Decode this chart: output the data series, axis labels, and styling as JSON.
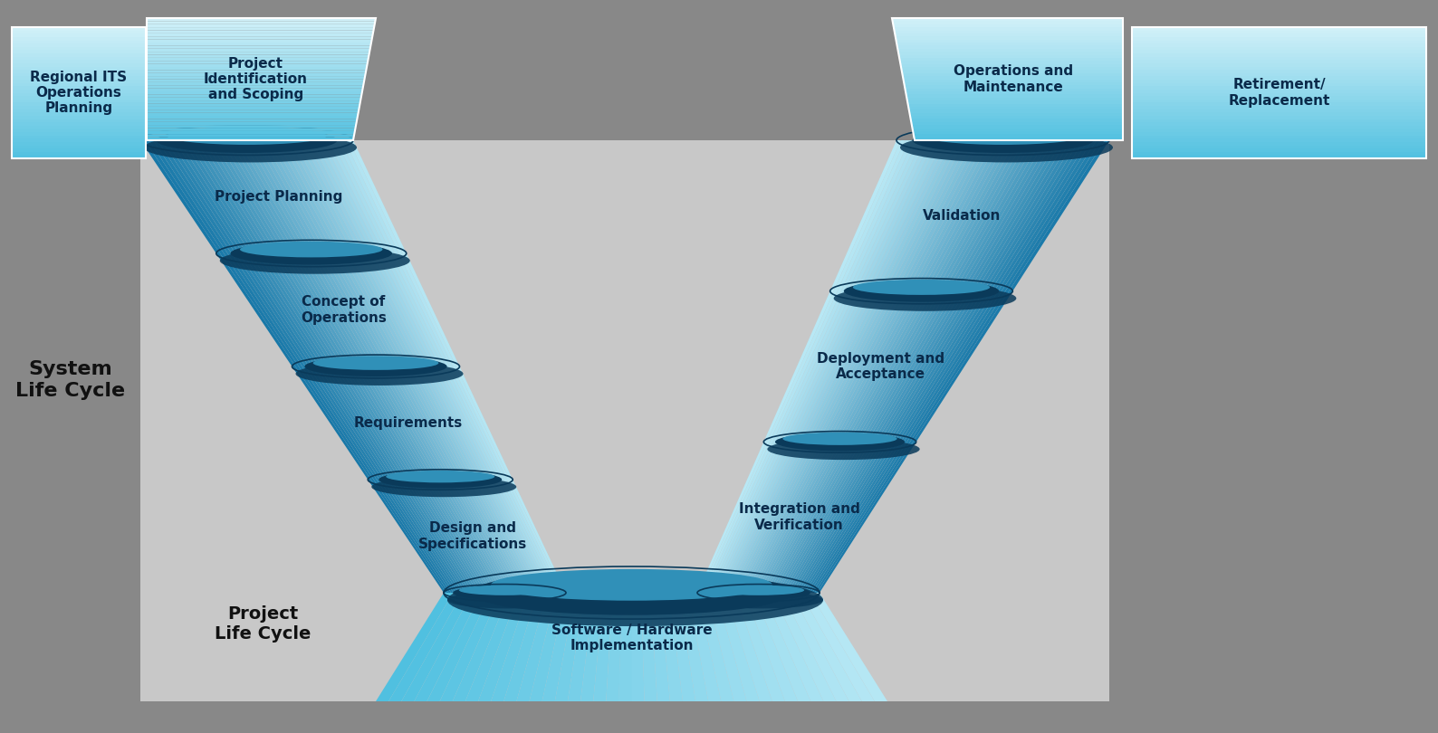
{
  "bg_outer": "#888888",
  "bg_inner": "#c8c8c8",
  "cyan_light": "#a8e0f0",
  "cyan_mid": "#50b8d8",
  "cyan_dark": "#1a6a9a",
  "oval_shadow": "#0a3a5a",
  "text_dark": "#0a2a4a",
  "left_steps": [
    "Project Planning",
    "Concept of\nOperations",
    "Requirements",
    "Design and\nSpecifications"
  ],
  "right_steps": [
    "Validation",
    "Deployment and\nAcceptance",
    "Integration and\nVerification"
  ],
  "bottom_step": "Software / Hardware\nImplementation",
  "top_left_box1": "Regional ITS\nOperations\nPlanning",
  "top_left_box2": "Project\nIdentification\nand Scoping",
  "top_right_box1": "Operations and\nMaintenance",
  "top_right_box2": "Retirement/\nReplacement",
  "label_system": "System\nLife Cycle",
  "label_project": "Project\nLife Cycle",
  "figw": 15.88,
  "figh": 8.1,
  "dpi": 100
}
